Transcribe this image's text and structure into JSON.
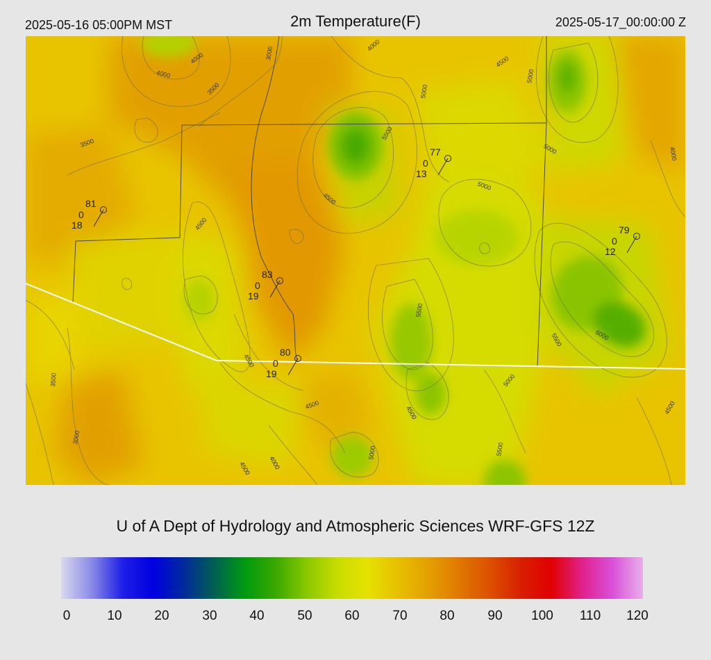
{
  "header": {
    "valid_local": "2025-05-16 05:00PM MST",
    "title": "2m Temperature(F)",
    "valid_utc": "2025-05-17_00:00:00 Z"
  },
  "credit": "U of A Dept of Hydrology and Atmospheric Sciences WRF-GFS 12Z",
  "colorbar": {
    "stops": [
      "#d9d9ee",
      "#8a8ae8",
      "#2020e8",
      "#0000e0",
      "#002a9a",
      "#006050",
      "#009a10",
      "#3aa800",
      "#88c800",
      "#c8dc00",
      "#e6e200",
      "#e6c000",
      "#e4a000",
      "#e07800",
      "#dc5000",
      "#d82000",
      "#e00000",
      "#e0208a",
      "#d850d8",
      "#e8b0e8"
    ],
    "ticks": [
      "0",
      "10",
      "20",
      "30",
      "40",
      "50",
      "60",
      "70",
      "80",
      "90",
      "100",
      "110",
      "120"
    ]
  },
  "contour_labels": [
    "4000",
    "4000",
    "3500",
    "3000",
    "4000",
    "3500",
    "5000",
    "5500",
    "4500",
    "5000",
    "5000",
    "4000",
    "4500",
    "4500",
    "5000",
    "5500",
    "5500",
    "6000",
    "4500",
    "4500",
    "4500",
    "5000",
    "3500",
    "3000",
    "4500",
    "4000",
    "5000",
    "5500",
    "4500"
  ],
  "stations": [
    {
      "temp": "81",
      "precip": "0",
      "dew": "18"
    },
    {
      "temp": "83",
      "precip": "0",
      "dew": "19"
    },
    {
      "temp": "80",
      "precip": "0",
      "dew": "19"
    },
    {
      "temp": "77",
      "precip": "0",
      "dew": "13"
    },
    {
      "temp": "79",
      "precip": "0",
      "dew": "12"
    }
  ]
}
